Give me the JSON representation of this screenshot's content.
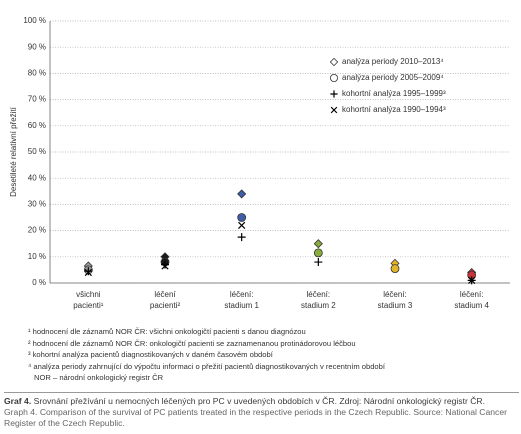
{
  "chart_data": {
    "type": "scatter",
    "y_label": "Desetileté relativní přežití",
    "categories": [
      "všichni pacienti¹",
      "léčení pacienti²",
      "léčení: stadium 1",
      "léčení: stadium 2",
      "léčení: stadium 3",
      "léčení: stadium 4"
    ],
    "category_colors": [
      "#9a9a9a",
      "#1a1a1a",
      "#3f5ea8",
      "#8aac3c",
      "#e3b52a",
      "#c8323a"
    ],
    "series": [
      {
        "name": "analýza periody 2010–2013⁴",
        "marker": "diamond",
        "color": "#333333",
        "values": [
          6.5,
          10,
          34,
          15,
          7.5,
          4
        ]
      },
      {
        "name": "analýza periody 2005–2009⁴",
        "marker": "circle",
        "color": "#333333",
        "values": [
          5,
          8,
          25,
          11.5,
          5.5,
          3
        ]
      },
      {
        "name": "kohortní analýza 1995–1999³",
        "marker": "plus",
        "color": "#000000",
        "values": [
          4.5,
          7,
          17.5,
          8,
          null,
          1
        ]
      },
      {
        "name": "kohortní analýza 1990–1994³",
        "marker": "x",
        "color": "#000000",
        "values": [
          4,
          6.5,
          22,
          null,
          null,
          1
        ]
      }
    ],
    "ylim": [
      0,
      100
    ],
    "yticks": [
      {
        "value": 0,
        "label": "0 %"
      },
      {
        "value": 10,
        "label": "10 %"
      },
      {
        "value": 20,
        "label": "20 %"
      },
      {
        "value": 30,
        "label": "30 %"
      },
      {
        "value": 40,
        "label": "40 %"
      },
      {
        "value": 50,
        "label": "50 %"
      },
      {
        "value": 60,
        "label": "60 %"
      },
      {
        "value": 70,
        "label": "70 %"
      },
      {
        "value": 80,
        "label": "80 %"
      },
      {
        "value": 90,
        "label": "90 %"
      },
      {
        "value": 100,
        "label": "100 %"
      }
    ],
    "grid": true
  },
  "notes": [
    "¹ hodnocení dle záznamů NOR ČR: všichni onkologičtí pacienti s danou diagnózou",
    "² hodnocení dle záznamů NOR ČR: onkologičtí pacienti se zaznamenanou protinádorovou léčbou",
    "³ kohortní analýza pacientů diagnostikovaných v daném časovém období",
    "⁴ analýza periody zahrnující do výpočtu informaci o přežití pacientů diagnostikovaných v recentním období",
    "NOR – národní onkologický registr ČR"
  ],
  "caption": {
    "label": "Graf 4.",
    "text": "Srovnání přežívání u nemocných léčených pro PC v uvedených obdobích v ČR. Zdroj: Národní onkologický registr ČR.",
    "english": "Graph 4. Comparison of the survival of PC patients treated in the respective periods in the Czech Republic. Source: National Cancer Register of the Czech Republic."
  }
}
